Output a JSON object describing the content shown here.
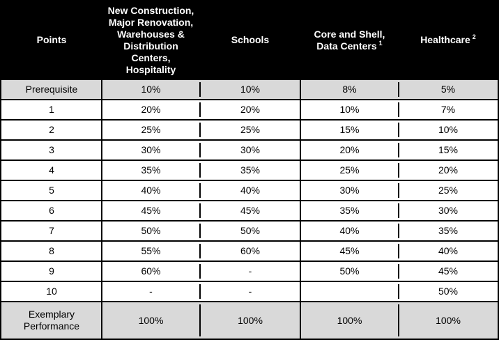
{
  "table": {
    "columns": [
      {
        "label": "Points"
      },
      {
        "label": "New Construction,\nMajor Renovation,\nWarehouses &\nDistribution\nCenters,\nHospitality"
      },
      {
        "label": "Schools"
      },
      {
        "label": "Core and Shell,\nData Centers",
        "sup": "1"
      },
      {
        "label": "Healthcare",
        "sup": "2"
      }
    ],
    "rows": [
      {
        "points": "Prerequisite",
        "values": [
          "10%",
          "10%",
          "8%",
          "5%"
        ],
        "highlight": true
      },
      {
        "points": "1",
        "values": [
          "20%",
          "20%",
          "10%",
          "7%"
        ],
        "highlight": false
      },
      {
        "points": "2",
        "values": [
          "25%",
          "25%",
          "15%",
          "10%"
        ],
        "highlight": false
      },
      {
        "points": "3",
        "values": [
          "30%",
          "30%",
          "20%",
          "15%"
        ],
        "highlight": false
      },
      {
        "points": "4",
        "values": [
          "35%",
          "35%",
          "25%",
          "20%"
        ],
        "highlight": false
      },
      {
        "points": "5",
        "values": [
          "40%",
          "40%",
          "30%",
          "25%"
        ],
        "highlight": false
      },
      {
        "points": "6",
        "values": [
          "45%",
          "45%",
          "35%",
          "30%"
        ],
        "highlight": false
      },
      {
        "points": "7",
        "values": [
          "50%",
          "50%",
          "40%",
          "35%"
        ],
        "highlight": false
      },
      {
        "points": "8",
        "values": [
          "55%",
          "60%",
          "45%",
          "40%"
        ],
        "highlight": false
      },
      {
        "points": "9",
        "values": [
          "60%",
          "-",
          "50%",
          "45%"
        ],
        "highlight": false
      },
      {
        "points": "10",
        "values": [
          "-",
          "-",
          "",
          "50%"
        ],
        "highlight": false
      },
      {
        "points": "Exemplary\nPerformance",
        "values": [
          "100%",
          "100%",
          "100%",
          "100%"
        ],
        "highlight": true
      }
    ],
    "colors": {
      "header_bg": "#000000",
      "header_text": "#ffffff",
      "highlight_row_bg": "#d9d9d9",
      "border": "#000000",
      "body_text": "#000000"
    }
  }
}
